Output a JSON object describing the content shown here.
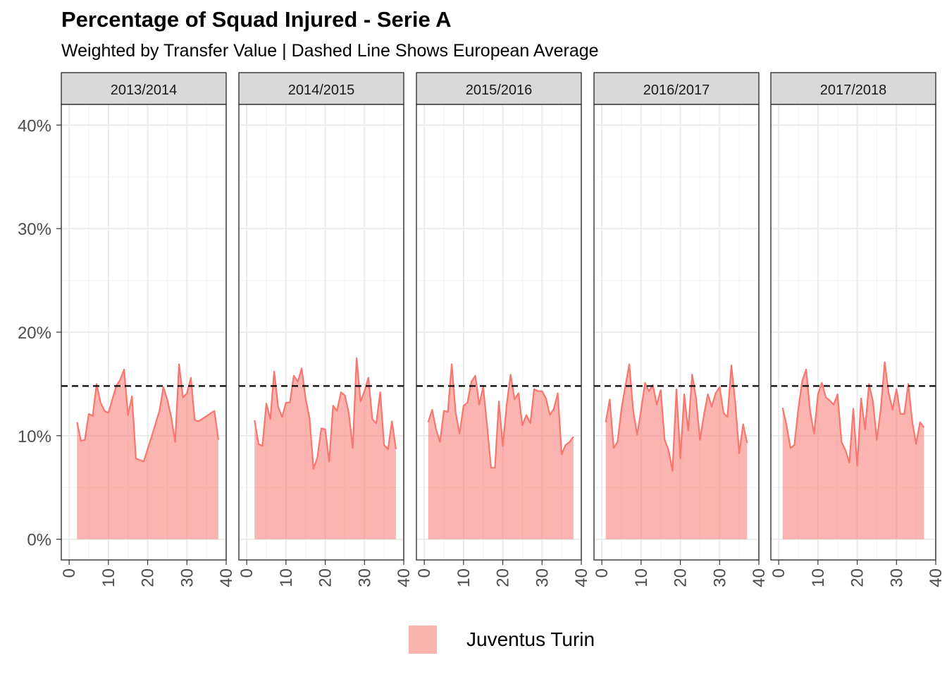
{
  "chart_data": {
    "type": "area",
    "title": "Percentage of Squad Injured - Serie A",
    "subtitle": "Weighted by Transfer Value | Dashed Line Shows European Average",
    "xlabel": "",
    "ylabel": "",
    "xlim": [
      -2,
      40
    ],
    "ylim": [
      -2,
      42
    ],
    "x_ticks": [
      "0",
      "10",
      "20",
      "30",
      "40"
    ],
    "y_ticks": [
      "0%",
      "10%",
      "20%",
      "30%",
      "40%"
    ],
    "reference_line": {
      "label": "European Average",
      "value": 14.8,
      "style": "dashed",
      "color": "#000000"
    },
    "grid": true,
    "legend_position": "bottom",
    "series_name": "Juventus Turin",
    "color": "#F8766D",
    "facets": [
      {
        "label": "2013/2014",
        "points": [
          [
            2,
            11.3
          ],
          [
            3,
            9.5
          ],
          [
            4,
            9.6
          ],
          [
            5,
            12.1
          ],
          [
            6,
            11.9
          ],
          [
            7,
            15.0
          ],
          [
            8,
            13.2
          ],
          [
            9,
            12.4
          ],
          [
            10,
            12.2
          ],
          [
            11,
            13.5
          ],
          [
            12,
            14.8
          ],
          [
            13,
            15.4
          ],
          [
            14,
            16.4
          ],
          [
            15,
            12.0
          ],
          [
            16,
            13.8
          ],
          [
            17,
            7.8
          ],
          [
            19,
            7.5
          ],
          [
            21,
            9.9
          ],
          [
            23,
            12.4
          ],
          [
            24,
            14.7
          ],
          [
            25,
            13.5
          ],
          [
            26,
            11.8
          ],
          [
            27,
            9.4
          ],
          [
            28,
            16.9
          ],
          [
            29,
            13.7
          ],
          [
            30,
            14.1
          ],
          [
            31,
            15.6
          ],
          [
            32,
            11.5
          ],
          [
            33,
            11.4
          ],
          [
            37,
            12.4
          ],
          [
            38,
            9.6
          ]
        ]
      },
      {
        "label": "2014/2015",
        "points": [
          [
            2,
            11.5
          ],
          [
            3,
            9.2
          ],
          [
            4,
            9.0
          ],
          [
            5,
            13.1
          ],
          [
            6,
            11.6
          ],
          [
            7,
            16.2
          ],
          [
            8,
            12.8
          ],
          [
            9,
            11.8
          ],
          [
            10,
            13.2
          ],
          [
            11,
            13.2
          ],
          [
            12,
            15.8
          ],
          [
            13,
            15.2
          ],
          [
            14,
            16.5
          ],
          [
            15,
            13.6
          ],
          [
            16,
            11.7
          ],
          [
            17,
            6.8
          ],
          [
            18,
            7.9
          ],
          [
            19,
            10.7
          ],
          [
            20,
            10.6
          ],
          [
            21,
            7.5
          ],
          [
            22,
            12.9
          ],
          [
            23,
            12.4
          ],
          [
            24,
            14.2
          ],
          [
            25,
            13.9
          ],
          [
            26,
            12.2
          ],
          [
            27,
            8.8
          ],
          [
            28,
            17.5
          ],
          [
            29,
            13.3
          ],
          [
            30,
            14.3
          ],
          [
            31,
            15.6
          ],
          [
            32,
            11.6
          ],
          [
            33,
            11.2
          ],
          [
            34,
            14.2
          ],
          [
            35,
            9.1
          ],
          [
            36,
            8.7
          ],
          [
            37,
            11.4
          ],
          [
            38,
            8.7
          ]
        ]
      },
      {
        "label": "2015/2016",
        "points": [
          [
            1,
            11.3
          ],
          [
            2,
            12.5
          ],
          [
            3,
            10.6
          ],
          [
            4,
            9.4
          ],
          [
            5,
            12.4
          ],
          [
            6,
            12.3
          ],
          [
            7,
            16.9
          ],
          [
            8,
            12.2
          ],
          [
            9,
            10.2
          ],
          [
            10,
            12.9
          ],
          [
            11,
            13.2
          ],
          [
            12,
            15.2
          ],
          [
            13,
            15.8
          ],
          [
            14,
            13.0
          ],
          [
            15,
            14.7
          ],
          [
            16,
            11.0
          ],
          [
            17,
            6.9
          ],
          [
            18,
            6.9
          ],
          [
            19,
            13.3
          ],
          [
            20,
            9.0
          ],
          [
            21,
            13.0
          ],
          [
            22,
            15.9
          ],
          [
            23,
            13.5
          ],
          [
            24,
            14.1
          ],
          [
            25,
            11.0
          ],
          [
            26,
            12.0
          ],
          [
            27,
            11.2
          ],
          [
            28,
            14.5
          ],
          [
            29,
            14.3
          ],
          [
            30,
            14.3
          ],
          [
            31,
            13.6
          ],
          [
            32,
            12.0
          ],
          [
            33,
            12.6
          ],
          [
            34,
            14.1
          ],
          [
            35,
            8.2
          ],
          [
            36,
            9.1
          ],
          [
            37,
            9.4
          ],
          [
            38,
            9.9
          ]
        ]
      },
      {
        "label": "2016/2017",
        "points": [
          [
            1,
            11.3
          ],
          [
            2,
            13.5
          ],
          [
            3,
            8.8
          ],
          [
            4,
            9.4
          ],
          [
            5,
            12.6
          ],
          [
            6,
            14.8
          ],
          [
            7,
            16.9
          ],
          [
            8,
            12.4
          ],
          [
            9,
            10.1
          ],
          [
            10,
            12.5
          ],
          [
            11,
            15.1
          ],
          [
            12,
            14.3
          ],
          [
            13,
            14.9
          ],
          [
            14,
            13.0
          ],
          [
            15,
            14.4
          ],
          [
            16,
            9.6
          ],
          [
            17,
            8.6
          ],
          [
            18,
            6.6
          ],
          [
            19,
            14.5
          ],
          [
            20,
            7.8
          ],
          [
            21,
            14.0
          ],
          [
            22,
            10.5
          ],
          [
            23,
            15.9
          ],
          [
            24,
            13.6
          ],
          [
            25,
            9.6
          ],
          [
            26,
            12.0
          ],
          [
            27,
            14.0
          ],
          [
            28,
            12.8
          ],
          [
            29,
            14.1
          ],
          [
            30,
            14.7
          ],
          [
            31,
            12.2
          ],
          [
            32,
            11.8
          ],
          [
            33,
            16.8
          ],
          [
            34,
            13.1
          ],
          [
            35,
            8.3
          ],
          [
            36,
            11.1
          ],
          [
            37,
            9.3
          ]
        ]
      },
      {
        "label": "2017/2018",
        "points": [
          [
            1,
            12.7
          ],
          [
            2,
            11.0
          ],
          [
            3,
            8.8
          ],
          [
            4,
            9.1
          ],
          [
            5,
            12.6
          ],
          [
            6,
            15.3
          ],
          [
            7,
            16.4
          ],
          [
            8,
            12.4
          ],
          [
            9,
            10.2
          ],
          [
            10,
            14.0
          ],
          [
            11,
            15.1
          ],
          [
            12,
            13.7
          ],
          [
            13,
            13.4
          ],
          [
            14,
            13.0
          ],
          [
            15,
            14.0
          ],
          [
            16,
            9.4
          ],
          [
            17,
            8.6
          ],
          [
            18,
            7.4
          ],
          [
            19,
            12.6
          ],
          [
            20,
            7.1
          ],
          [
            21,
            13.6
          ],
          [
            22,
            10.6
          ],
          [
            23,
            15.0
          ],
          [
            24,
            13.3
          ],
          [
            25,
            9.6
          ],
          [
            26,
            12.6
          ],
          [
            27,
            17.1
          ],
          [
            28,
            14.2
          ],
          [
            29,
            12.5
          ],
          [
            30,
            14.5
          ],
          [
            31,
            12.1
          ],
          [
            32,
            12.1
          ],
          [
            33,
            15.0
          ],
          [
            34,
            11.4
          ],
          [
            35,
            9.2
          ],
          [
            36,
            11.3
          ],
          [
            37,
            10.8
          ]
        ]
      }
    ]
  }
}
